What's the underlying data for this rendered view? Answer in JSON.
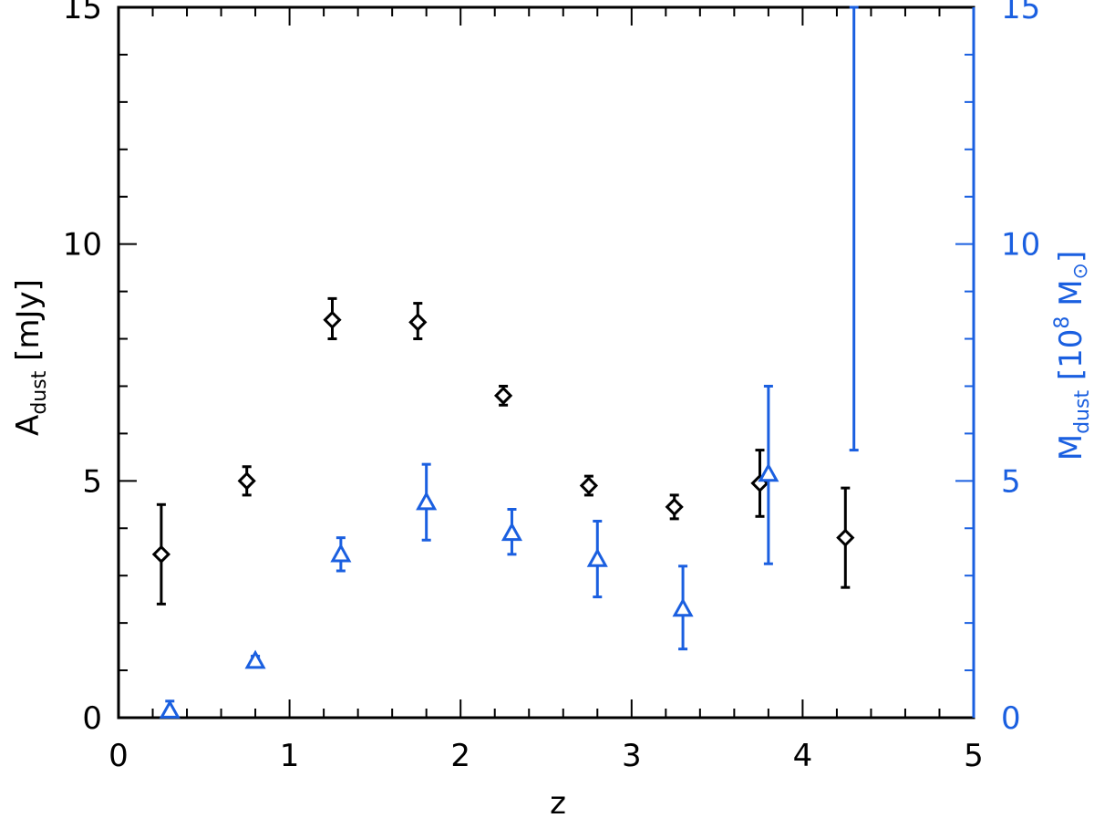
{
  "chart_data": {
    "type": "scatter",
    "title": "",
    "xlabel": "z",
    "ylabel": {
      "main": "A",
      "sub": "dust",
      "unit": "[mJy]"
    },
    "y2label": {
      "main": "M",
      "sub": "dust",
      "unit_open": "[10",
      "unit_exp": "8",
      "unit_close": " M",
      "unit_sym": "⊙",
      "unit_end": "]"
    },
    "xlim": [
      0,
      5
    ],
    "ylim": [
      0,
      15
    ],
    "y2lim": [
      0,
      15
    ],
    "xticks": [
      "0",
      "1",
      "2",
      "3",
      "4",
      "5"
    ],
    "yticks": [
      "0",
      "5",
      "10",
      "15"
    ],
    "y2ticks": [
      "0",
      "5",
      "10",
      "15"
    ],
    "colors": {
      "left": "#000000",
      "right": "#1a5fe0"
    },
    "series": [
      {
        "axis": "left",
        "marker": "diamond",
        "points": [
          {
            "x": 0.25,
            "y": 3.45,
            "lo": 2.4,
            "hi": 4.5
          },
          {
            "x": 0.75,
            "y": 5.0,
            "lo": 4.7,
            "hi": 5.3
          },
          {
            "x": 1.25,
            "y": 8.4,
            "lo": 8.0,
            "hi": 8.85
          },
          {
            "x": 1.75,
            "y": 8.35,
            "lo": 8.0,
            "hi": 8.75
          },
          {
            "x": 2.25,
            "y": 6.8,
            "lo": 6.6,
            "hi": 7.0
          },
          {
            "x": 2.75,
            "y": 4.9,
            "lo": 4.7,
            "hi": 5.1
          },
          {
            "x": 3.25,
            "y": 4.45,
            "lo": 4.2,
            "hi": 4.7
          },
          {
            "x": 3.75,
            "y": 4.95,
            "lo": 4.25,
            "hi": 5.65
          },
          {
            "x": 4.25,
            "y": 3.8,
            "lo": 2.75,
            "hi": 4.85
          }
        ]
      },
      {
        "axis": "right",
        "marker": "triangle",
        "points": [
          {
            "x": 0.3,
            "y": 0.15,
            "lo": 0.0,
            "hi": 0.35
          },
          {
            "x": 0.8,
            "y": 1.2,
            "lo": 1.1,
            "hi": 1.3
          },
          {
            "x": 1.3,
            "y": 3.45,
            "lo": 3.1,
            "hi": 3.8
          },
          {
            "x": 1.8,
            "y": 4.55,
            "lo": 3.75,
            "hi": 5.35
          },
          {
            "x": 2.3,
            "y": 3.9,
            "lo": 3.45,
            "hi": 4.4
          },
          {
            "x": 2.8,
            "y": 3.35,
            "lo": 2.55,
            "hi": 4.15
          },
          {
            "x": 3.3,
            "y": 2.3,
            "lo": 1.45,
            "hi": 3.2
          },
          {
            "x": 3.8,
            "y": 5.15,
            "lo": 3.25,
            "hi": 7.0
          },
          {
            "x": 4.3,
            "y": null,
            "lo": 5.65,
            "hi": 15.0
          }
        ]
      }
    ]
  }
}
